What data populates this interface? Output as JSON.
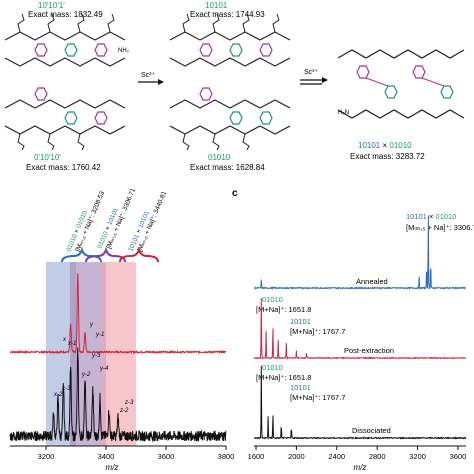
{
  "colors": {
    "green": "#1a9a6a",
    "magenta": "#b0309a",
    "blue": "#2f6db4",
    "red": "#c9283a",
    "black": "#111111",
    "band_blue": "#9fb0d8",
    "band_purple": "#a98cbf",
    "band_red": "#f2a8b2"
  },
  "top": {
    "mol1": {
      "code": "10'10'1'",
      "mass": "Exact mass: 1832.49"
    },
    "mol2": {
      "code": "10101",
      "mass": "Exact mass: 1744.93"
    },
    "mol3": {
      "code": "0'10'10'",
      "mass": "Exact mass: 1760.42"
    },
    "mol4": {
      "code": "01010",
      "mass": "Exact mass: 1628.84"
    },
    "mol5": {
      "code_a": "10101",
      "code_sep": " × ",
      "code_b": "01010",
      "mass": "Exact mass: 3283.72"
    },
    "arrow1": "Sc³⁺",
    "arrow2": "Sc³⁺"
  },
  "panel_c_label": "c",
  "left_plot": {
    "xlabel": "m/z",
    "xticks": [
      "3200",
      "3400",
      "3600",
      "3800"
    ],
    "peaks": [
      {
        "code_a": "01010",
        "sep": " × ",
        "code_b": "01010",
        "ion": "[Mₗₘ,₅ + Na]⁺: 3208.53"
      },
      {
        "code_a": "01010",
        "sep": " × ",
        "code_b": "10101",
        "ion": "[Mₗₘ,₅ + Na]⁺: 3306.71"
      },
      {
        "code_a": "10101",
        "sep": " × ",
        "code_b": "10101",
        "ion": "[Mₗₘ,₅ + Na]⁺: 3440.81"
      }
    ],
    "red_labels": [
      "x",
      "x-1",
      "y",
      "y-1"
    ],
    "black_labels": [
      "x-2",
      "x-3",
      "y-2",
      "y-3",
      "y-4",
      "z-2",
      "z-3"
    ]
  },
  "right_plot": {
    "xlabel": "m/z",
    "xticks": [
      "1600",
      "2000",
      "2400",
      "2800",
      "3200",
      "3600"
    ],
    "traces": [
      {
        "name": "Annealed",
        "label_code_a": "10101",
        "label_sep": " × ",
        "label_code_b": "01010",
        "label_ion": "[Mₗₘ,₅ + Na]⁺: 3306.7"
      },
      {
        "name": "Post-extraction",
        "code1": "01010",
        "ion1": "[M+Na]⁺: 1651.8",
        "code2": "10101",
        "ion2": "[M+Na]⁺: 1767.7"
      },
      {
        "name": "Dissociated",
        "code1": "01010",
        "ion1": "[M+Na]⁺: 1651.8",
        "code2": "10101",
        "ion2": "[M+Na]⁺: 1767.7"
      }
    ]
  },
  "chart_data": [
    {
      "type": "line",
      "title": "",
      "xlabel": "m/z",
      "ylabel": "",
      "xlim": [
        3080,
        3800
      ],
      "grid": false,
      "bands": [
        {
          "x0": 3200,
          "x1": 3300,
          "color": "#9fb0d8"
        },
        {
          "x0": 3280,
          "x1": 3400,
          "color": "#a98cbf"
        },
        {
          "x0": 3385,
          "x1": 3500,
          "color": "#f2a8b2"
        }
      ],
      "series": [
        {
          "color": "#c9283a",
          "peaks_x": [
            3282,
            3306,
            3330
          ],
          "peaks_rel": [
            0.35,
            1.0,
            0.25
          ]
        },
        {
          "color": "#111111",
          "peaks_x": [
            3225,
            3240,
            3258,
            3282,
            3306,
            3330,
            3356,
            3380,
            3410,
            3440
          ],
          "peaks_rel": [
            0.25,
            0.45,
            0.6,
            0.8,
            1.0,
            0.7,
            0.55,
            0.45,
            0.3,
            0.22
          ]
        }
      ]
    },
    {
      "type": "line",
      "title": "",
      "xlabel": "m/z",
      "ylabel": "",
      "xlim": [
        1580,
        3680
      ],
      "grid": false,
      "series": [
        {
          "name": "Annealed",
          "color": "#2f6db4",
          "peaks_x": [
            1652,
            3215,
            3290,
            3307,
            3330
          ],
          "peaks_rel": [
            0.1,
            0.15,
            0.3,
            1.0,
            0.35
          ]
        },
        {
          "name": "Post-extraction",
          "color": "#c9283a",
          "peaks_x": [
            1652,
            1700,
            1767,
            1820,
            1900,
            2000,
            2100
          ],
          "peaks_rel": [
            1.0,
            0.45,
            0.55,
            0.3,
            0.25,
            0.12,
            0.08
          ]
        },
        {
          "name": "Dissociated",
          "color": "#111111",
          "peaks_x": [
            1652,
            1720,
            1767,
            1850,
            1950
          ],
          "peaks_rel": [
            1.0,
            0.3,
            0.35,
            0.2,
            0.15
          ]
        }
      ]
    }
  ]
}
